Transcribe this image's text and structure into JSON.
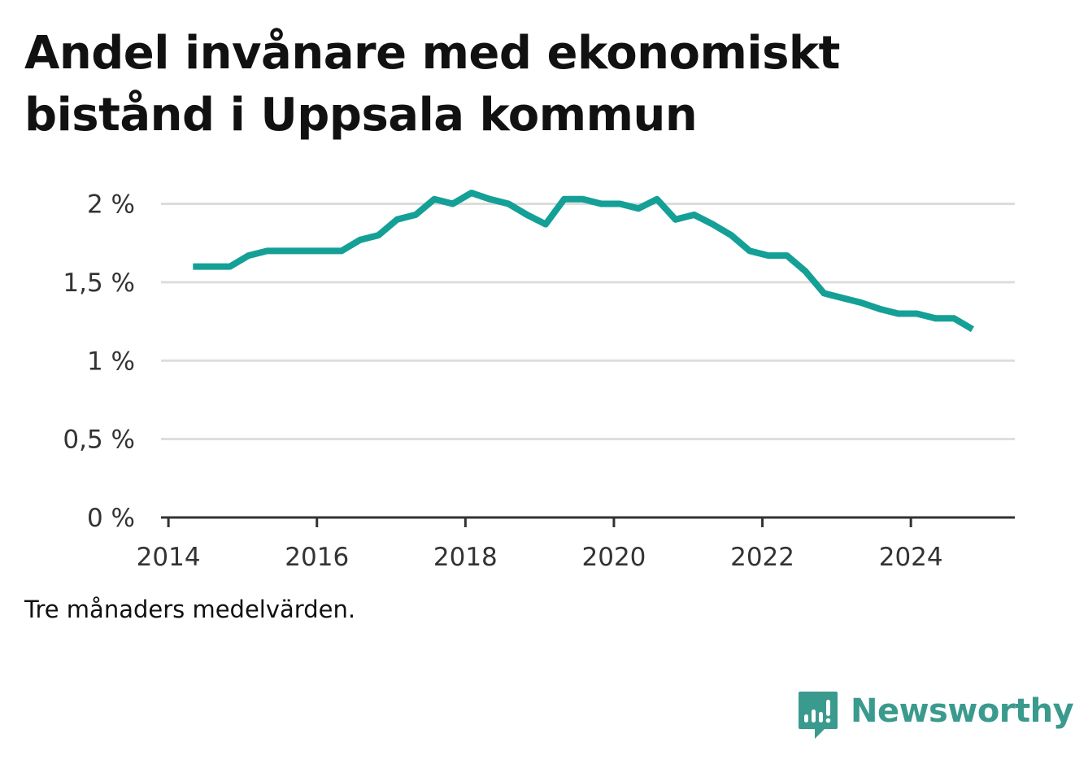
{
  "title_lines": [
    "Andel invånare med ekonomiskt",
    "bistånd i Uppsala kommun"
  ],
  "caption": "Tre månaders medelvärden.",
  "brand": {
    "name": "Newsworthy",
    "color": "#3a9a8e",
    "icon": "newsworthy-logo-icon"
  },
  "colors": {
    "line": "#14a096",
    "grid": "#dddddd",
    "axis": "#333333"
  },
  "chart_data": {
    "type": "line",
    "title": "Andel invånare med ekonomiskt bistånd i Uppsala kommun",
    "xlabel": "",
    "ylabel": "",
    "xlim": [
      2013.9,
      2025.4
    ],
    "ylim": [
      0,
      2.2
    ],
    "x_ticks": [
      2014,
      2016,
      2018,
      2020,
      2022,
      2024
    ],
    "x_tick_labels": [
      "2014",
      "2016",
      "2018",
      "2020",
      "2022",
      "2024"
    ],
    "y_ticks": [
      0,
      0.5,
      1,
      1.5,
      2
    ],
    "y_tick_labels": [
      "0 %",
      "0,5 %",
      "1 %",
      "1,5 %",
      "2 %"
    ],
    "grid": true,
    "series": [
      {
        "name": "Andel invånare med ekonomiskt bistånd",
        "x": [
          2014.33,
          2014.58,
          2014.83,
          2015.08,
          2015.33,
          2015.58,
          2015.83,
          2016.08,
          2016.33,
          2016.58,
          2016.83,
          2017.08,
          2017.33,
          2017.58,
          2017.83,
          2018.08,
          2018.33,
          2018.58,
          2018.83,
          2019.08,
          2019.33,
          2019.58,
          2019.83,
          2020.08,
          2020.33,
          2020.58,
          2020.83,
          2021.08,
          2021.33,
          2021.58,
          2021.83,
          2022.08,
          2022.33,
          2022.58,
          2022.83,
          2023.08,
          2023.33,
          2023.58,
          2023.83,
          2024.08,
          2024.33,
          2024.58,
          2024.83
        ],
        "values": [
          1.6,
          1.6,
          1.6,
          1.67,
          1.7,
          1.7,
          1.7,
          1.7,
          1.7,
          1.77,
          1.8,
          1.9,
          1.93,
          2.03,
          2.0,
          2.07,
          2.03,
          2.0,
          1.93,
          1.87,
          2.03,
          2.03,
          2.0,
          2.0,
          1.97,
          2.03,
          1.9,
          1.93,
          1.87,
          1.8,
          1.7,
          1.67,
          1.67,
          1.57,
          1.43,
          1.4,
          1.37,
          1.33,
          1.3,
          1.3,
          1.27,
          1.27,
          1.2
        ]
      }
    ]
  }
}
